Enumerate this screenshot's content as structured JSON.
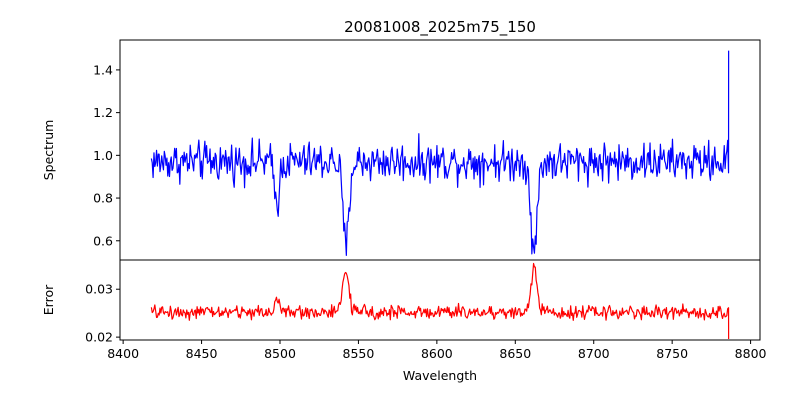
{
  "chart_data": {
    "type": "line",
    "title": "20081008_2025m75_150",
    "xlabel": "Wavelength",
    "x_ticks": [
      "8400",
      "8450",
      "8500",
      "8550",
      "8600",
      "8650",
      "8700",
      "8750",
      "8800"
    ],
    "panels": [
      {
        "name": "spectrum",
        "ylabel": "Spectrum",
        "color": "#0000ff",
        "xlim": [
          8398,
          8806
        ],
        "ylim": [
          0.51,
          1.54
        ],
        "y_ticks": [
          "0.6",
          "0.8",
          "1.0",
          "1.2",
          "1.4"
        ],
        "continuum": 0.97,
        "noise": 0.045,
        "x_range": [
          8418,
          8786
        ],
        "lines": [
          {
            "center": 8498,
            "depth": 0.19,
            "width": 1.6
          },
          {
            "center": 8542,
            "depth": 0.4,
            "width": 1.9
          },
          {
            "center": 8662,
            "depth": 0.44,
            "width": 1.9
          }
        ],
        "end_point": {
          "x": 8786,
          "y": 1.49
        }
      },
      {
        "name": "error",
        "ylabel": "Error",
        "color": "#ff0000",
        "xlim": [
          8398,
          8806
        ],
        "ylim": [
          0.0194,
          0.0361
        ],
        "y_ticks": [
          "0.02",
          "0.03"
        ],
        "continuum": 0.0252,
        "noise": 0.0007,
        "x_range": [
          8418,
          8786
        ],
        "lines": [
          {
            "center": 8498,
            "depth": -0.0025,
            "width": 1.8
          },
          {
            "center": 8542,
            "depth": -0.0085,
            "width": 2.0
          },
          {
            "center": 8662,
            "depth": -0.01,
            "width": 1.8
          }
        ],
        "end_point": {
          "x": 8786,
          "y": 0.0196
        }
      }
    ],
    "grid": false,
    "legend": "none"
  }
}
